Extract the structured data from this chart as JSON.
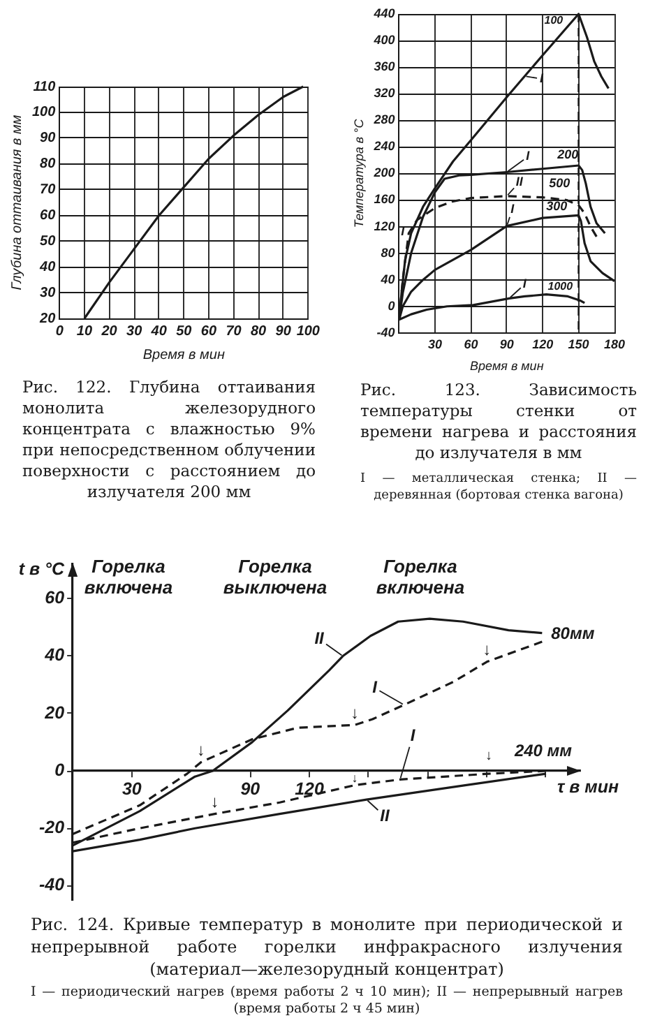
{
  "chart_data": [
    {
      "type": "line",
      "title": "Рис. 122. Глубина оттаивания монолита железорудного концентрата с влажностью 9% при непосредственном облучении поверхности с расстоянием до излучателя 200 мм",
      "xlabel": "Время в мин",
      "ylabel": "Глубина оттаивания в мм",
      "x": [
        10,
        20,
        30,
        40,
        50,
        60,
        70,
        80,
        90,
        98
      ],
      "values": [
        20,
        34,
        47,
        60,
        71,
        82,
        91,
        99,
        106,
        110
      ],
      "color": "#1a1a1a",
      "xlim": [
        0,
        100
      ],
      "ylim": [
        20,
        110
      ],
      "xticks": [
        0,
        10,
        20,
        30,
        40,
        50,
        60,
        70,
        80,
        90,
        100
      ],
      "yticks": [
        20,
        30,
        40,
        50,
        60,
        70,
        80,
        90,
        100,
        110
      ],
      "grid": true,
      "legend": false,
      "marker": "none"
    },
    {
      "type": "line",
      "title": "Рис. 123. Зависимость температуры стенки от времени нагрева и расстояния до излучателя в мм",
      "xlabel": "Время в мин",
      "ylabel": "Температура в °С",
      "series": [
        {
          "color": "#1a1a1a",
          "x": [
            0,
            2,
            5,
            10,
            20,
            30,
            45,
            60,
            90,
            120,
            150,
            157,
            163,
            169,
            175
          ],
          "values": [
            -20,
            20,
            70,
            110,
            150,
            178,
            218,
            250,
            315,
            378,
            440,
            405,
            369,
            346,
            328
          ]
        },
        {
          "color": "#1a1a1a",
          "x": [
            0,
            3,
            10,
            20,
            30,
            38,
            50,
            60,
            90,
            120,
            150,
            153,
            156,
            160,
            165,
            172
          ],
          "values": [
            -20,
            20,
            80,
            135,
            172,
            192,
            197,
            198,
            202,
            207,
            212,
            205,
            185,
            150,
            125,
            110
          ]
        },
        {
          "color": "#1a1a1a",
          "line_style": "dashed",
          "x": [
            0,
            3,
            8,
            15,
            30,
            45,
            60,
            90,
            120,
            140,
            150,
            155,
            160,
            165
          ],
          "values": [
            -20,
            40,
            110,
            130,
            148,
            158,
            163,
            166,
            164,
            160,
            152,
            140,
            120,
            105
          ]
        },
        {
          "color": "#1a1a1a",
          "x": [
            0,
            3,
            10,
            20,
            30,
            45,
            60,
            90,
            120,
            150,
            152,
            155,
            160,
            170,
            180
          ],
          "values": [
            -20,
            0,
            22,
            40,
            55,
            70,
            85,
            121,
            133,
            137,
            128,
            95,
            68,
            50,
            38
          ]
        },
        {
          "color": "#1a1a1a",
          "x": [
            0,
            10,
            23,
            40,
            62,
            92,
            105,
            123,
            141,
            151,
            155
          ],
          "values": [
            -20,
            -12,
            -5,
            0,
            2,
            12,
            15,
            18,
            15,
            9,
            5
          ]
        }
      ],
      "xlim": [
        0,
        180
      ],
      "ylim": [
        -40,
        440
      ],
      "xticks": [
        30,
        60,
        90,
        120,
        150,
        180
      ],
      "yticks": [
        -40,
        0,
        40,
        80,
        120,
        160,
        200,
        240,
        280,
        320,
        360,
        400,
        440
      ],
      "grid": true,
      "legend": false,
      "marker": "none",
      "ref_lines": [
        {
          "axis": "x",
          "value": 150,
          "line_style": "dashed"
        }
      ],
      "annotations": [
        {
          "text": "100",
          "x": 135,
          "y": 409
        },
        {
          "text": "200",
          "x": 120,
          "y": 207
        },
        {
          "text": "500",
          "x": 120,
          "y": 164
        },
        {
          "text": "300",
          "x": 120,
          "y": 133
        },
        {
          "text": "1000",
          "x": 123,
          "y": 18
        },
        {
          "text": "I",
          "x": 105,
          "y": 346.5
        },
        {
          "text": "I",
          "x": 90,
          "y": 202
        },
        {
          "text": "II",
          "x": 90,
          "y": 166
        },
        {
          "text": "I",
          "x": 90,
          "y": 121
        },
        {
          "text": "I",
          "x": 92,
          "y": 12
        },
        {
          "text": "I",
          "x": 10,
          "y": 110
        },
        "I — металлическая стенка; II — деревянная (бортовая стенка вагона)"
      ]
    },
    {
      "type": "line",
      "title": "Рис. 124. Кривые температур в монолите при периодической и непрерывной работе горелки инфракрасного излучения (материал—железорудный концентрат)",
      "xlabel": "τ в мин",
      "ylabel": "t в °C",
      "series": [
        {
          "color": "#1a1a1a",
          "x": [
            0,
            34,
            62,
            71,
            91,
            109,
            130,
            137,
            151,
            165,
            181,
            198,
            221,
            238
          ],
          "values": [
            -26,
            -14,
            -2,
            0,
            10,
            21,
            35,
            40,
            47,
            52,
            53,
            52,
            49,
            48
          ]
        },
        {
          "color": "#1a1a1a",
          "line_style": "dashed",
          "x": [
            0,
            34,
            58,
            65,
            91,
            114,
            143,
            152,
            168,
            193,
            210,
            238
          ],
          "values": [
            -22,
            -12,
            -1,
            3,
            11,
            15,
            16,
            18,
            23,
            31,
            38,
            45
          ]
        },
        {
          "color": "#1a1a1a",
          "line_style": "dashed",
          "x": [
            0,
            34,
            57,
            72,
            105,
            143,
            166,
            211,
            240
          ],
          "values": [
            -25,
            -20,
            -17,
            -15,
            -11,
            -5,
            -3,
            -1,
            0
          ]
        },
        {
          "color": "#1a1a1a",
          "x": [
            0,
            34,
            62,
            105,
            149,
            199,
            240
          ],
          "values": [
            -28,
            -24,
            -20,
            -15,
            -10,
            -5,
            -1
          ]
        }
      ],
      "xlim": [
        0,
        257
      ],
      "ylim": [
        -45,
        72
      ],
      "xticks": [
        30,
        90,
        120,
        {
          "value": 150,
          "label": null
        },
        {
          "value": 180,
          "label": null
        },
        {
          "value": 210,
          "label": null
        },
        {
          "value": 240,
          "label": null
        }
      ],
      "yticks": [
        -40,
        -20,
        0,
        20,
        40,
        60
      ],
      "grid": false,
      "legend": false,
      "marker": "none",
      "annotations": [
        {
          "text": "II",
          "x": 137,
          "y": 40
        },
        {
          "text": "I",
          "x": 168,
          "y": 23
        },
        {
          "text": "80мм",
          "x": 238,
          "y": 48
        },
        {
          "text": "I",
          "x": 166,
          "y": -3
        },
        {
          "text": "II",
          "x": 149,
          "y": -10
        },
        {
          "text": "240 мм",
          "x": 240,
          "y": 0
        },
        {
          "text": "↓",
          "x": 65,
          "y": 3
        },
        {
          "text": "↓",
          "x": 143,
          "y": 16
        },
        {
          "text": "↓",
          "x": 210,
          "y": 38
        },
        {
          "text": "↓",
          "x": 72,
          "y": -15
        },
        {
          "text": "↓",
          "x": 143,
          "y": -5
        },
        {
          "text": "↓",
          "x": 211,
          "y": -1
        },
        "Горелка\nвключена",
        "Горелка\nвыключена",
        "Горелка\nвключена",
        "I — периодический нагрев (время работы 2 ч 10 мин); II — непрерывный нагрев (время работы 2 ч 45 мин)"
      ]
    }
  ]
}
